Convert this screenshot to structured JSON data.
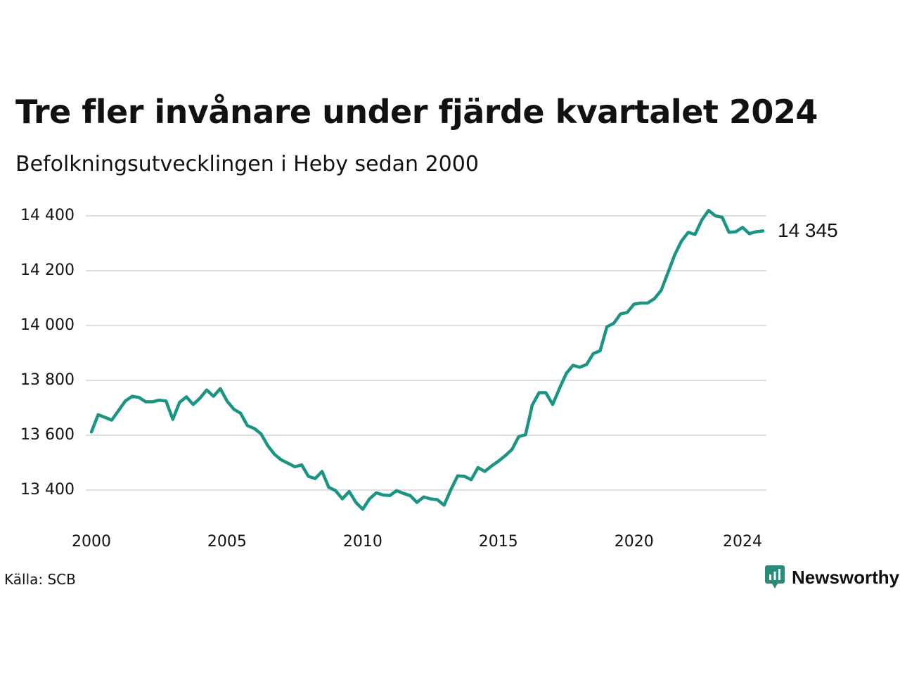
{
  "title": "Tre fler invånare under fjärde kvartalet 2024",
  "subtitle": "Befolkningsutvecklingen i Heby sedan 2000",
  "source": "Källa: SCB",
  "brand": {
    "name": "Newsworthy",
    "icon": "newsworthy-logo-icon"
  },
  "colors": {
    "line": "#1a9483",
    "grid": "#dddddd",
    "text": "#111111",
    "brand": "#2a8b7a"
  },
  "chart_data": {
    "type": "line",
    "title": "Tre fler invånare under fjärde kvartalet 2024",
    "subtitle": "Befolkningsutvecklingen i Heby sedan 2000",
    "xlabel": "",
    "ylabel": "",
    "grid": true,
    "legend": "none",
    "xlim": [
      2000,
      2024.75
    ],
    "ylim": [
      13330,
      14430
    ],
    "x_ticks": [
      2000,
      2005,
      2010,
      2015,
      2020,
      2024
    ],
    "x_tick_labels": [
      "2000",
      "2005",
      "2010",
      "2015",
      "2020",
      "2024"
    ],
    "y_ticks": [
      13400,
      13600,
      13800,
      14000,
      14200,
      14400
    ],
    "y_tick_labels": [
      "13 400",
      "13 600",
      "13 800",
      "14 000",
      "14 200",
      "14 400"
    ],
    "end_label": "14 345",
    "series": [
      {
        "x": [
          2000,
          2000.25,
          2000.5,
          2000.75,
          2001,
          2001.25,
          2001.5,
          2001.75,
          2002,
          2002.25,
          2002.5,
          2002.75,
          2003,
          2003.25,
          2003.5,
          2003.75,
          2004,
          2004.25,
          2004.5,
          2004.75,
          2005,
          2005.25,
          2005.5,
          2005.75,
          2006,
          2006.25,
          2006.5,
          2006.75,
          2007,
          2007.25,
          2007.5,
          2007.75,
          2008,
          2008.25,
          2008.5,
          2008.75,
          2009,
          2009.25,
          2009.5,
          2009.75,
          2010,
          2010.25,
          2010.5,
          2010.75,
          2011,
          2011.25,
          2011.5,
          2011.75,
          2012,
          2012.25,
          2012.5,
          2012.75,
          2013,
          2013.25,
          2013.5,
          2013.75,
          2014,
          2014.25,
          2014.5,
          2014.75,
          2015,
          2015.25,
          2015.5,
          2015.75,
          2016,
          2016.25,
          2016.5,
          2016.75,
          2017,
          2017.25,
          2017.5,
          2017.75,
          2018,
          2018.25,
          2018.5,
          2018.75,
          2019,
          2019.25,
          2019.5,
          2019.75,
          2020,
          2020.25,
          2020.5,
          2020.75,
          2021,
          2021.25,
          2021.5,
          2021.75,
          2022,
          2022.25,
          2022.5,
          2022.75,
          2023,
          2023.25,
          2023.5,
          2023.75,
          2024,
          2024.25,
          2024.5,
          2024.75
        ],
        "values": [
          13612,
          13675,
          13665,
          13655,
          13690,
          13725,
          13742,
          13738,
          13722,
          13722,
          13728,
          13725,
          13658,
          13720,
          13740,
          13712,
          13735,
          13765,
          13742,
          13770,
          13725,
          13695,
          13680,
          13635,
          13625,
          13605,
          13562,
          13530,
          13510,
          13498,
          13485,
          13492,
          13450,
          13442,
          13468,
          13410,
          13398,
          13368,
          13395,
          13355,
          13330,
          13368,
          13390,
          13382,
          13380,
          13398,
          13388,
          13380,
          13355,
          13375,
          13368,
          13365,
          13345,
          13402,
          13452,
          13450,
          13438,
          13482,
          13468,
          13488,
          13505,
          13525,
          13548,
          13595,
          13602,
          13710,
          13755,
          13755,
          13712,
          13770,
          13825,
          13855,
          13848,
          13858,
          13898,
          13908,
          13995,
          14008,
          14042,
          14048,
          14078,
          14082,
          14082,
          14098,
          14128,
          14192,
          14258,
          14308,
          14340,
          14332,
          14385,
          14420,
          14400,
          14395,
          14340,
          14342,
          14358,
          14335,
          14342,
          14345
        ]
      }
    ]
  }
}
